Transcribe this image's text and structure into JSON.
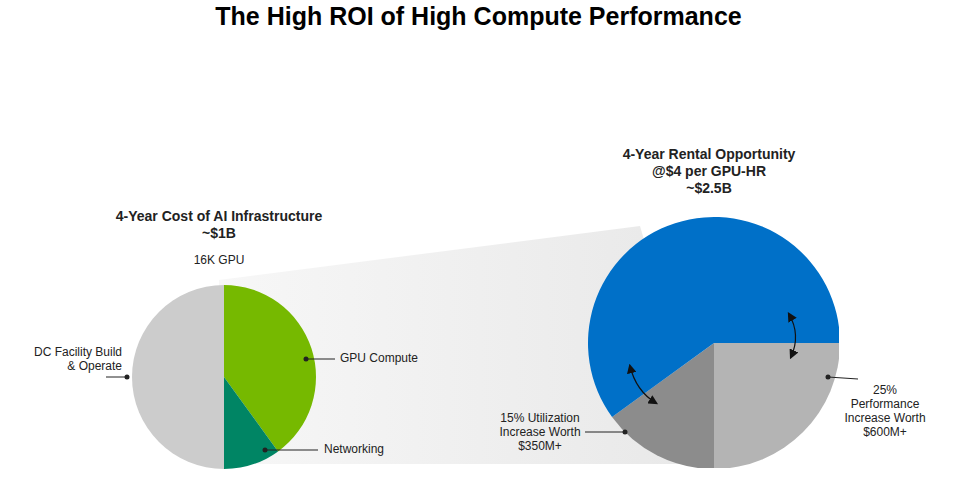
{
  "title": "The High ROI of High Compute Performance",
  "chart_data": [
    {
      "type": "pie",
      "title": "4-Year Cost of AI Infrastructure",
      "subtitle": "~$1B",
      "annotations": [
        "16K GPU"
      ],
      "categories": [
        "GPU Compute",
        "Networking",
        "DC Facility Build & Operate"
      ],
      "values": [
        40,
        10,
        50
      ],
      "colors": [
        "#76b900",
        "#008564",
        "#cccccc"
      ]
    },
    {
      "type": "pie",
      "title": "4-Year Rental Opportunity",
      "subtitle": "@$4 per GPU-HR",
      "annotations": [
        "~$2.5B"
      ],
      "categories": [
        "25% Performance Increase Worth $600M+",
        "15% Utilization Increase Worth $350M+",
        null
      ],
      "values": [
        25,
        15,
        60
      ],
      "colors": [
        "#b4b4b4",
        "#8c8c8c",
        "#0070c8"
      ]
    }
  ]
}
